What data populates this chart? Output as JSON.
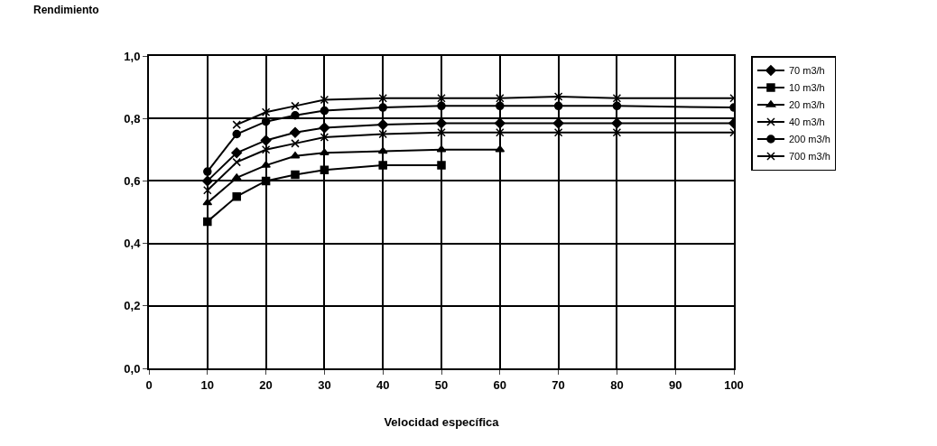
{
  "chart_data": {
    "type": "line",
    "xlabel": "Velocidad específica",
    "ylabel": "Rendimiento",
    "xlim": [
      0,
      100
    ],
    "xticks": [
      0,
      10,
      20,
      30,
      40,
      50,
      60,
      70,
      80,
      90,
      100
    ],
    "ylim": [
      0,
      1
    ],
    "yticks": [
      {
        "value": 0,
        "label": "0,0"
      },
      {
        "value": 0.2,
        "label": "0,2"
      },
      {
        "value": 0.4,
        "label": "0,4"
      },
      {
        "value": 0.6,
        "label": "0,6"
      },
      {
        "value": 0.8,
        "label": "0,8"
      },
      {
        "value": 1,
        "label": "1,0"
      }
    ],
    "grid": true,
    "legend": "right",
    "line_style": "solid",
    "series": [
      {
        "name": "70 m3/h",
        "color": "#000000",
        "marker": "diamond",
        "x": [
          10,
          15,
          20,
          25,
          30,
          40,
          50,
          60,
          70,
          80,
          100
        ],
        "values": [
          0.6,
          0.69,
          0.73,
          0.755,
          0.77,
          0.78,
          0.785,
          0.785,
          0.785,
          0.785,
          0.785
        ]
      },
      {
        "name": "10 m3/h",
        "color": "#000000",
        "marker": "square",
        "x": [
          10,
          15,
          20,
          25,
          30,
          40,
          50
        ],
        "values": [
          0.47,
          0.55,
          0.6,
          0.62,
          0.635,
          0.65,
          0.65
        ]
      },
      {
        "name": "20 m3/h",
        "color": "#000000",
        "marker": "triangle",
        "x": [
          10,
          15,
          20,
          25,
          30,
          40,
          50,
          60
        ],
        "values": [
          0.53,
          0.61,
          0.65,
          0.68,
          0.69,
          0.695,
          0.7,
          0.7
        ]
      },
      {
        "name": "40 m3/h",
        "color": "#000000",
        "marker": "cross",
        "x": [
          10,
          15,
          20,
          25,
          30,
          40,
          50,
          60,
          70,
          80,
          100
        ],
        "values": [
          0.57,
          0.66,
          0.7,
          0.72,
          0.74,
          0.75,
          0.755,
          0.755,
          0.755,
          0.755,
          0.755
        ]
      },
      {
        "name": "200 m3/h",
        "color": "#000000",
        "marker": "circle",
        "x": [
          10,
          15,
          20,
          25,
          30,
          40,
          50,
          60,
          70,
          80,
          100
        ],
        "values": [
          0.63,
          0.75,
          0.79,
          0.81,
          0.825,
          0.835,
          0.84,
          0.84,
          0.84,
          0.84,
          0.835
        ]
      },
      {
        "name": "700 m3/h",
        "color": "#000000",
        "marker": "cross",
        "x": [
          15,
          20,
          25,
          30,
          40,
          50,
          60,
          70,
          80,
          100
        ],
        "values": [
          0.78,
          0.82,
          0.84,
          0.86,
          0.865,
          0.865,
          0.865,
          0.87,
          0.865,
          0.865
        ]
      }
    ]
  }
}
